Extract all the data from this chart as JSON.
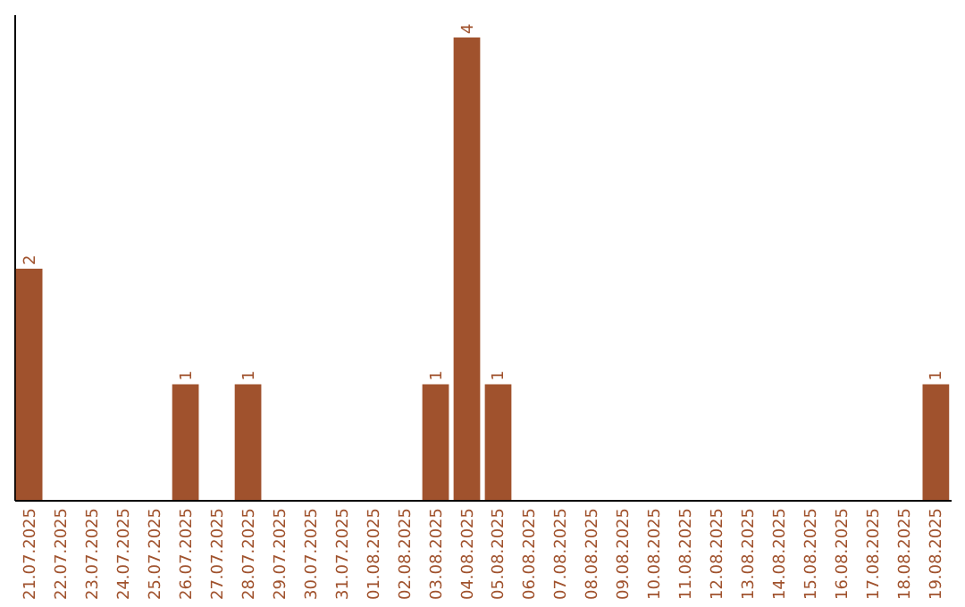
{
  "chart_data": {
    "type": "bar",
    "categories": [
      "21.07.2025",
      "22.07.2025",
      "23.07.2025",
      "24.07.2025",
      "25.07.2025",
      "26.07.2025",
      "27.07.2025",
      "28.07.2025",
      "29.07.2025",
      "30.07.2025",
      "31.07.2025",
      "01.08.2025",
      "02.08.2025",
      "03.08.2025",
      "04.08.2025",
      "05.08.2025",
      "06.08.2025",
      "07.08.2025",
      "08.08.2025",
      "09.08.2025",
      "10.08.2025",
      "11.08.2025",
      "12.08.2025",
      "13.08.2025",
      "14.08.2025",
      "15.08.2025",
      "16.08.2025",
      "17.08.2025",
      "18.08.2025",
      "19.08.2025"
    ],
    "values": [
      2,
      0,
      0,
      0,
      0,
      1,
      0,
      1,
      0,
      0,
      0,
      0,
      0,
      1,
      4,
      1,
      0,
      0,
      0,
      0,
      0,
      0,
      0,
      0,
      0,
      0,
      0,
      0,
      0,
      1
    ],
    "value_labels": [
      "2",
      null,
      null,
      null,
      null,
      "1",
      null,
      "1",
      null,
      null,
      null,
      null,
      null,
      "1",
      "4",
      "1",
      null,
      null,
      null,
      null,
      null,
      null,
      null,
      null,
      null,
      null,
      null,
      null,
      null,
      "1"
    ],
    "color": "#a0522d",
    "ylim": [
      0,
      4.2
    ],
    "grid": false,
    "tick_labels": "x"
  }
}
